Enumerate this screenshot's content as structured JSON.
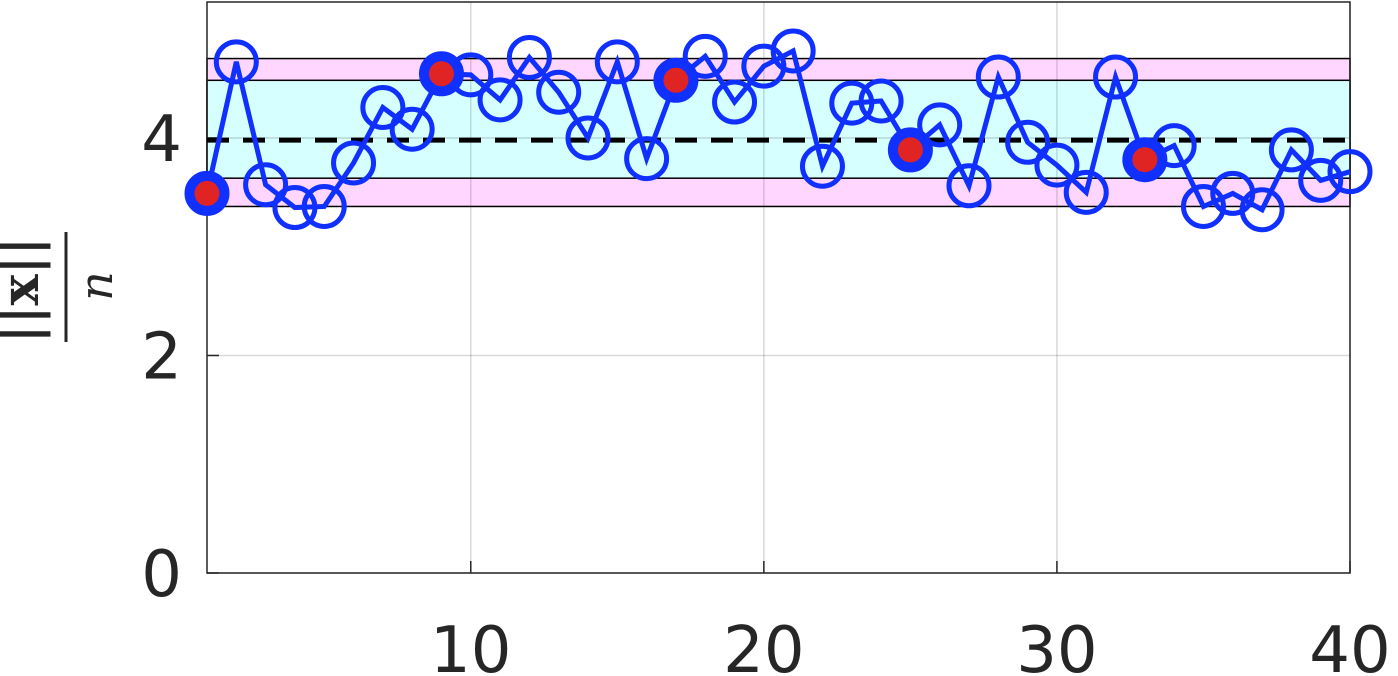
{
  "chart_data": {
    "type": "line",
    "x": [
      1,
      2,
      3,
      4,
      5,
      6,
      7,
      8,
      9,
      10,
      11,
      12,
      13,
      14,
      15,
      16,
      17,
      18,
      19,
      20,
      21,
      22,
      23,
      24,
      25,
      26,
      27,
      28,
      29,
      30,
      31,
      32,
      33,
      34,
      35,
      36,
      37,
      38,
      39,
      40
    ],
    "series": [
      {
        "color": "#1030ff",
        "values": [
          3.49,
          4.7,
          3.57,
          3.36,
          3.37,
          3.77,
          4.28,
          4.08,
          4.59,
          4.58,
          4.35,
          4.74,
          4.42,
          4.0,
          4.7,
          3.81,
          4.53,
          4.75,
          4.33,
          4.66,
          4.8,
          3.74,
          4.32,
          4.34,
          3.89,
          4.12,
          3.56,
          4.56,
          3.96,
          3.75,
          3.5,
          4.56,
          3.8,
          3.93,
          3.37,
          3.49,
          3.34,
          3.89,
          3.61,
          3.69
        ]
      }
    ],
    "highlight": {
      "x": [
        1,
        9,
        17,
        25,
        33
      ],
      "values": [
        3.49,
        4.59,
        4.53,
        3.89,
        3.8
      ],
      "color": "#e02424",
      "edge": "#1030ff"
    },
    "bands": [
      {
        "range": [
          3.37,
          4.73
        ],
        "color": "#ffd6ff"
      },
      {
        "range": [
          3.63,
          4.53
        ],
        "color": "#d6ffff"
      }
    ],
    "reference_line": 3.98,
    "ylabel_numerator": "||x||",
    "ylabel_denominator": "n",
    "xlim": [
      1,
      40
    ],
    "ylim": [
      0,
      5.25
    ],
    "xticks": [
      10,
      20,
      30,
      40
    ],
    "yticks": [
      0,
      2,
      4
    ],
    "grid": true
  }
}
